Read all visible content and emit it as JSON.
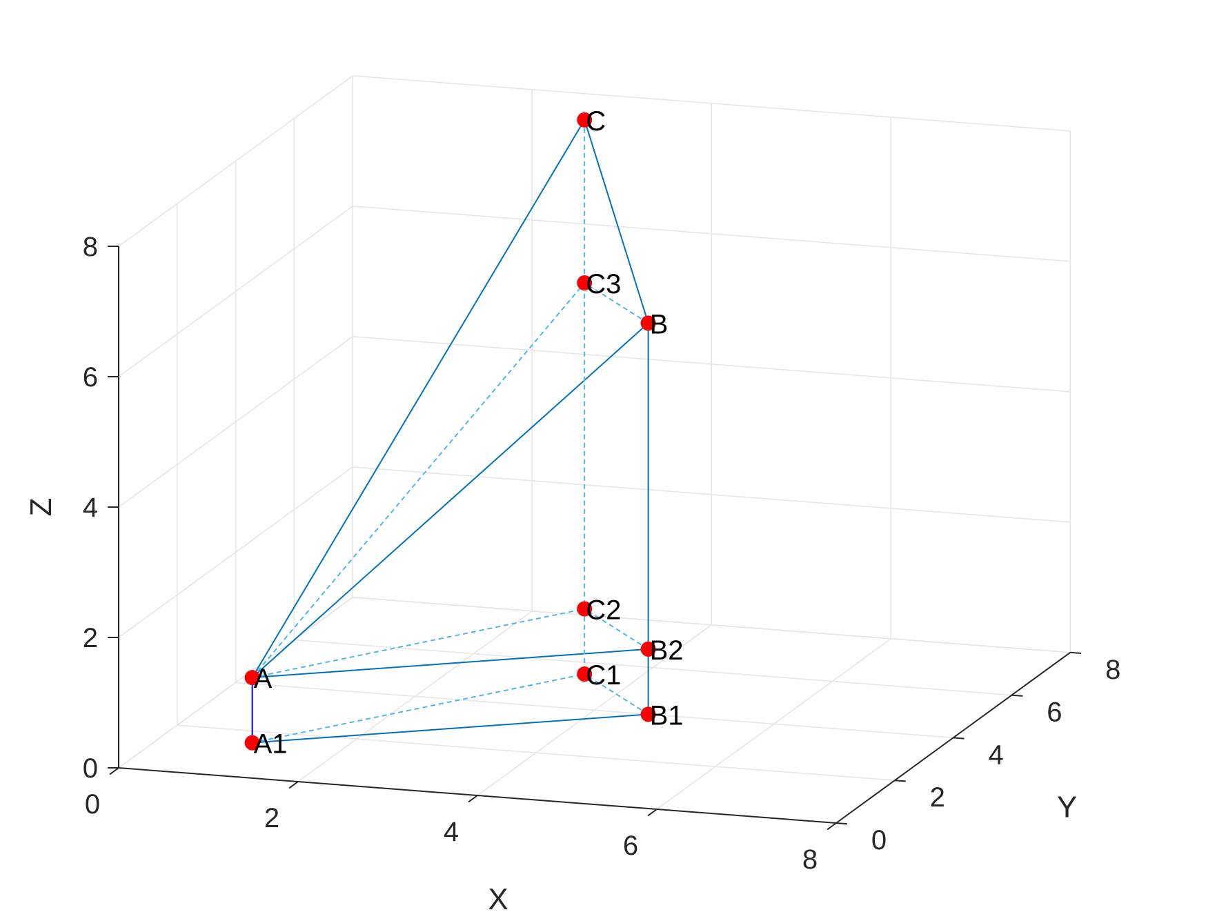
{
  "chart_data": {
    "type": "scatter3d",
    "title": "",
    "xlabel": "X",
    "ylabel": "Y",
    "zlabel": "Z",
    "xlim": [
      0,
      8
    ],
    "ylim": [
      0,
      8
    ],
    "zlim": [
      0,
      8
    ],
    "xticks": [
      "0",
      "2",
      "4",
      "6",
      "8"
    ],
    "yticks": [
      "0",
      "2",
      "4",
      "6",
      "8"
    ],
    "zticks": [
      "0",
      "2",
      "4",
      "6",
      "8"
    ],
    "grid": true,
    "colors": {
      "marker": "#ff0000",
      "solid_line": "#0072bd",
      "dashed_line": "#4db8e8",
      "vertical_a": "#0000ff",
      "grid": "#e6e6e6",
      "axis": "#262626"
    },
    "points": [
      {
        "label": "A",
        "x": 1,
        "y": 1.5,
        "z": 1
      },
      {
        "label": "A1",
        "x": 1,
        "y": 1.5,
        "z": 0
      },
      {
        "label": "B",
        "x": 4.6,
        "y": 4,
        "z": 6
      },
      {
        "label": "B1",
        "x": 4.6,
        "y": 4,
        "z": 0
      },
      {
        "label": "B2",
        "x": 4.6,
        "y": 4,
        "z": 1
      },
      {
        "label": "C",
        "x": 3.4,
        "y": 5.5,
        "z": 8.5
      },
      {
        "label": "C1",
        "x": 3.4,
        "y": 5.5,
        "z": 0
      },
      {
        "label": "C2",
        "x": 3.4,
        "y": 5.5,
        "z": 1
      },
      {
        "label": "C3",
        "x": 3.4,
        "y": 5.5,
        "z": 6
      }
    ],
    "segments": [
      {
        "from": "A",
        "to": "A1",
        "style": "vertical"
      },
      {
        "from": "A",
        "to": "B",
        "style": "solid"
      },
      {
        "from": "A",
        "to": "C",
        "style": "solid"
      },
      {
        "from": "B",
        "to": "C",
        "style": "solid"
      },
      {
        "from": "B",
        "to": "B1",
        "style": "solid"
      },
      {
        "from": "A",
        "to": "B2",
        "style": "solid"
      },
      {
        "from": "A1",
        "to": "B1",
        "style": "solid"
      },
      {
        "from": "A",
        "to": "C3",
        "style": "dashed"
      },
      {
        "from": "B",
        "to": "C3",
        "style": "dashed"
      },
      {
        "from": "C",
        "to": "C1",
        "style": "dashed"
      },
      {
        "from": "A",
        "to": "C2",
        "style": "dashed"
      },
      {
        "from": "B2",
        "to": "C2",
        "style": "dashed"
      },
      {
        "from": "A1",
        "to": "C1",
        "style": "dashed"
      },
      {
        "from": "B1",
        "to": "C1",
        "style": "dashed"
      }
    ]
  }
}
